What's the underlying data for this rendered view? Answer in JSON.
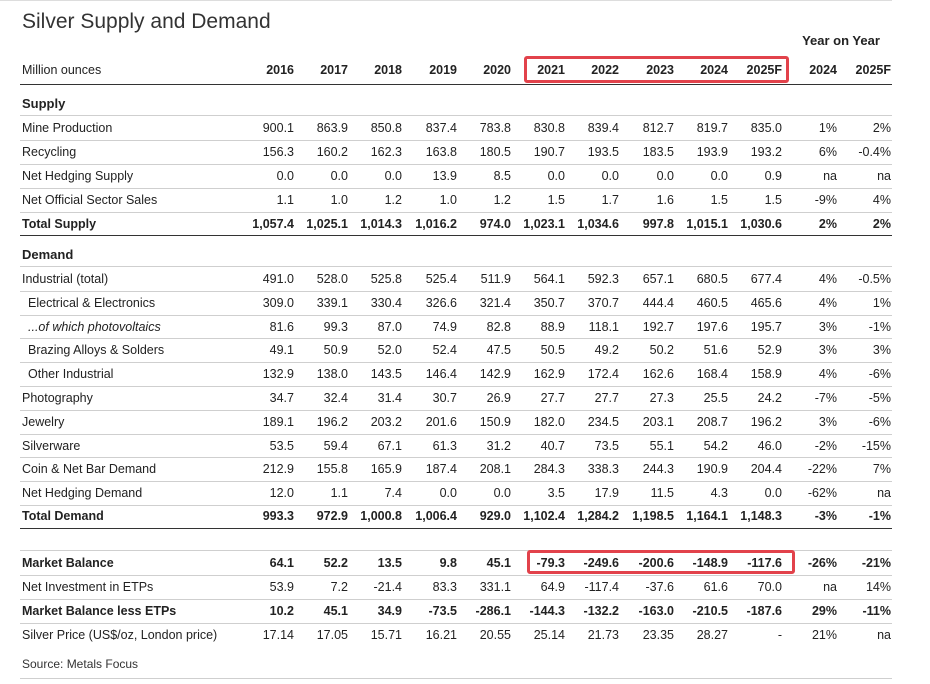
{
  "title": "Silver Supply and Demand",
  "yoy_header": "Year on Year",
  "header": {
    "label": "Million ounces",
    "years": [
      "2016",
      "2017",
      "2018",
      "2019",
      "2020",
      "2021",
      "2022",
      "2023",
      "2024",
      "2025F"
    ],
    "yoy": [
      "2024",
      "2025F"
    ]
  },
  "supply": {
    "heading": "Supply",
    "rows": [
      {
        "label": "Mine Production",
        "values": [
          "900.1",
          "863.9",
          "850.8",
          "837.4",
          "783.8",
          "830.8",
          "839.4",
          "812.7",
          "819.7",
          "835.0"
        ],
        "yoy": [
          "1%",
          "2%"
        ]
      },
      {
        "label": "Recycling",
        "values": [
          "156.3",
          "160.2",
          "162.3",
          "163.8",
          "180.5",
          "190.7",
          "193.5",
          "183.5",
          "193.9",
          "193.2"
        ],
        "yoy": [
          "6%",
          "-0.4%"
        ]
      },
      {
        "label": "Net Hedging Supply",
        "values": [
          "0.0",
          "0.0",
          "0.0",
          "13.9",
          "8.5",
          "0.0",
          "0.0",
          "0.0",
          "0.0",
          "0.9"
        ],
        "yoy": [
          "na",
          "na"
        ]
      },
      {
        "label": "Net Official Sector Sales",
        "values": [
          "1.1",
          "1.0",
          "1.2",
          "1.0",
          "1.2",
          "1.5",
          "1.7",
          "1.6",
          "1.5",
          "1.5"
        ],
        "yoy": [
          "-9%",
          "4%"
        ]
      }
    ],
    "total": {
      "label": "Total Supply",
      "values": [
        "1,057.4",
        "1,025.1",
        "1,014.3",
        "1,016.2",
        "974.0",
        "1,023.1",
        "1,034.6",
        "997.8",
        "1,015.1",
        "1,030.6"
      ],
      "yoy": [
        "2%",
        "2%"
      ]
    }
  },
  "demand": {
    "heading": "Demand",
    "rows": [
      {
        "label": "Industrial (total)",
        "values": [
          "491.0",
          "528.0",
          "525.8",
          "525.4",
          "511.9",
          "564.1",
          "592.3",
          "657.1",
          "680.5",
          "677.4"
        ],
        "yoy": [
          "4%",
          "-0.5%"
        ]
      },
      {
        "label": "Electrical & Electronics",
        "values": [
          "309.0",
          "339.1",
          "330.4",
          "326.6",
          "321.4",
          "350.7",
          "370.7",
          "444.4",
          "460.5",
          "465.6"
        ],
        "yoy": [
          "4%",
          "1%"
        ]
      },
      {
        "label": "...of which photovoltaics",
        "values": [
          "81.6",
          "99.3",
          "87.0",
          "74.9",
          "82.8",
          "88.9",
          "118.1",
          "192.7",
          "197.6",
          "195.7"
        ],
        "yoy": [
          "3%",
          "-1%"
        ]
      },
      {
        "label": "Brazing Alloys & Solders",
        "values": [
          "49.1",
          "50.9",
          "52.0",
          "52.4",
          "47.5",
          "50.5",
          "49.2",
          "50.2",
          "51.6",
          "52.9"
        ],
        "yoy": [
          "3%",
          "3%"
        ]
      },
      {
        "label": "Other Industrial",
        "values": [
          "132.9",
          "138.0",
          "143.5",
          "146.4",
          "142.9",
          "162.9",
          "172.4",
          "162.6",
          "168.4",
          "158.9"
        ],
        "yoy": [
          "4%",
          "-6%"
        ]
      },
      {
        "label": "Photography",
        "values": [
          "34.7",
          "32.4",
          "31.4",
          "30.7",
          "26.9",
          "27.7",
          "27.7",
          "27.3",
          "25.5",
          "24.2"
        ],
        "yoy": [
          "-7%",
          "-5%"
        ]
      },
      {
        "label": "Jewelry",
        "values": [
          "189.1",
          "196.2",
          "203.2",
          "201.6",
          "150.9",
          "182.0",
          "234.5",
          "203.1",
          "208.7",
          "196.2"
        ],
        "yoy": [
          "3%",
          "-6%"
        ]
      },
      {
        "label": "Silverware",
        "values": [
          "53.5",
          "59.4",
          "67.1",
          "61.3",
          "31.2",
          "40.7",
          "73.5",
          "55.1",
          "54.2",
          "46.0"
        ],
        "yoy": [
          "-2%",
          "-15%"
        ]
      },
      {
        "label": "Coin & Net Bar Demand",
        "values": [
          "212.9",
          "155.8",
          "165.9",
          "187.4",
          "208.1",
          "284.3",
          "338.3",
          "244.3",
          "190.9",
          "204.4"
        ],
        "yoy": [
          "-22%",
          "7%"
        ]
      },
      {
        "label": "Net Hedging Demand",
        "values": [
          "12.0",
          "1.1",
          "7.4",
          "0.0",
          "0.0",
          "3.5",
          "17.9",
          "11.5",
          "4.3",
          "0.0"
        ],
        "yoy": [
          "-62%",
          "na"
        ]
      }
    ],
    "total": {
      "label": "Total Demand",
      "values": [
        "993.3",
        "972.9",
        "1,000.8",
        "1,006.4",
        "929.0",
        "1,102.4",
        "1,284.2",
        "1,198.5",
        "1,164.1",
        "1,148.3"
      ],
      "yoy": [
        "-3%",
        "-1%"
      ]
    }
  },
  "balance": [
    {
      "label": "Market Balance",
      "values": [
        "64.1",
        "52.2",
        "13.5",
        "9.8",
        "45.1",
        "-79.3",
        "-249.6",
        "-200.6",
        "-148.9",
        "-117.6"
      ],
      "yoy": [
        "-26%",
        "-21%"
      ]
    },
    {
      "label": "Net Investment in ETPs",
      "values": [
        "53.9",
        "7.2",
        "-21.4",
        "83.3",
        "331.1",
        "64.9",
        "-117.4",
        "-37.6",
        "61.6",
        "70.0"
      ],
      "yoy": [
        "na",
        "14%"
      ]
    },
    {
      "label": "Market Balance less ETPs",
      "values": [
        "10.2",
        "45.1",
        "34.9",
        "-73.5",
        "-286.1",
        "-144.3",
        "-132.2",
        "-163.0",
        "-210.5",
        "-187.6"
      ],
      "yoy": [
        "29%",
        "-11%"
      ]
    },
    {
      "label": "Silver Price (US$/oz, London price)",
      "values": [
        "17.14",
        "17.05",
        "15.71",
        "16.21",
        "20.55",
        "25.14",
        "21.73",
        "23.35",
        "28.27",
        "-"
      ],
      "yoy": [
        "21%",
        "na"
      ]
    }
  ],
  "source": "Source: Metals Focus"
}
